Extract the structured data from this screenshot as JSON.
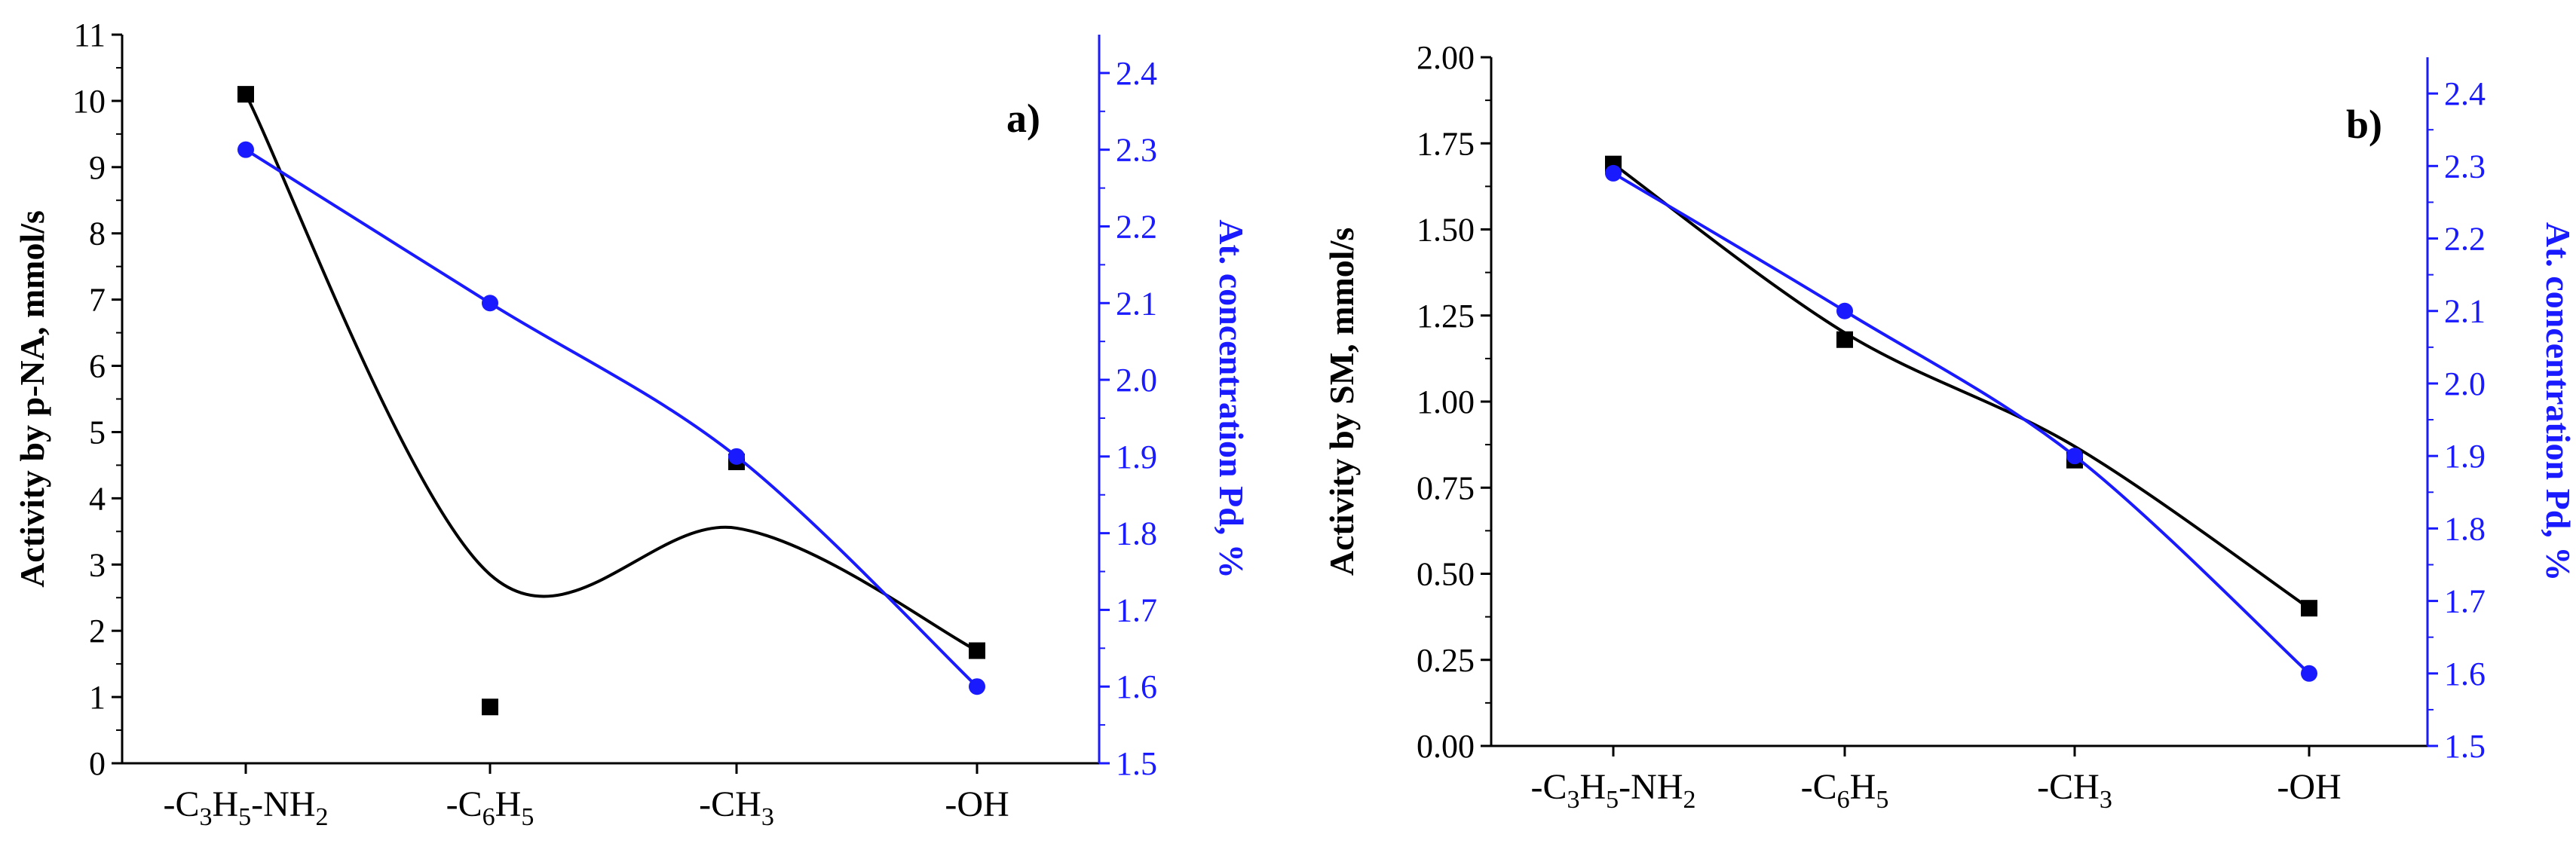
{
  "chart_data": [
    {
      "type": "line",
      "panel_label": "a)",
      "categories": [
        "-C3H5-NH2",
        "-C6H5",
        "-CH3",
        "-OH"
      ],
      "category_labels": [
        [
          {
            "t": "-C"
          },
          {
            "t": "3",
            "sub": true
          },
          {
            "t": "H"
          },
          {
            "t": "5",
            "sub": true
          },
          {
            "t": "-NH"
          },
          {
            "t": "2",
            "sub": true
          }
        ],
        [
          {
            "t": "-C"
          },
          {
            "t": "6",
            "sub": true
          },
          {
            "t": "H"
          },
          {
            "t": "5",
            "sub": true
          }
        ],
        [
          {
            "t": "-CH"
          },
          {
            "t": "3",
            "sub": true
          }
        ],
        [
          {
            "t": "-OH"
          }
        ]
      ],
      "ylabel": "Activity by p-NA, mmol/s",
      "y2label": "At. concentration Pd, %",
      "ylim": [
        0,
        11
      ],
      "yticks": [
        "0",
        "1",
        "2",
        "3",
        "4",
        "5",
        "6",
        "7",
        "8",
        "9",
        "10",
        "11"
      ],
      "y2lim": [
        1.5,
        2.45
      ],
      "y2ticks": [
        "1.5",
        "1.6",
        "1.7",
        "1.8",
        "1.9",
        "2.0",
        "2.1",
        "2.2",
        "2.3",
        "2.4"
      ],
      "series": [
        {
          "name": "Activity",
          "axis": "left",
          "color": "#000000",
          "marker": "square",
          "values": [
            10.1,
            0.85,
            4.55,
            1.7
          ],
          "curve": [
            10.1,
            2.85,
            3.55,
            1.7
          ]
        },
        {
          "name": "Pd concentration",
          "axis": "right",
          "color": "#1a1aff",
          "marker": "circle",
          "values": [
            2.3,
            2.1,
            1.9,
            1.6
          ],
          "curve": [
            2.3,
            2.1,
            1.9,
            1.6
          ]
        }
      ]
    },
    {
      "type": "line",
      "panel_label": "b)",
      "categories": [
        "-C3H5-NH2",
        "-C6H5",
        "-CH3",
        "-OH"
      ],
      "category_labels": [
        [
          {
            "t": "-C"
          },
          {
            "t": "3",
            "sub": true
          },
          {
            "t": "H"
          },
          {
            "t": "5",
            "sub": true
          },
          {
            "t": "-NH"
          },
          {
            "t": "2",
            "sub": true
          }
        ],
        [
          {
            "t": "-C"
          },
          {
            "t": "6",
            "sub": true
          },
          {
            "t": "H"
          },
          {
            "t": "5",
            "sub": true
          }
        ],
        [
          {
            "t": "-CH"
          },
          {
            "t": "3",
            "sub": true
          }
        ],
        [
          {
            "t": "-OH"
          }
        ]
      ],
      "ylabel": "Activity by SM, mmol/s",
      "y2label": "At. concentration Pd, %",
      "ylim": [
        0,
        2.0
      ],
      "yticks": [
        "0.00",
        "0.25",
        "0.50",
        "0.75",
        "1.00",
        "1.25",
        "1.50",
        "1.75",
        "2.00"
      ],
      "y2lim": [
        1.5,
        2.45
      ],
      "y2ticks": [
        "1.5",
        "1.6",
        "1.7",
        "1.8",
        "1.9",
        "2.0",
        "2.1",
        "2.2",
        "2.3",
        "2.4"
      ],
      "series": [
        {
          "name": "Activity",
          "axis": "left",
          "color": "#000000",
          "marker": "square",
          "values": [
            1.69,
            1.18,
            0.83,
            0.4
          ],
          "curve": [
            1.69,
            1.2,
            0.87,
            0.4
          ]
        },
        {
          "name": "Pd concentration",
          "axis": "right",
          "color": "#1a1aff",
          "marker": "circle",
          "values": [
            2.29,
            2.1,
            1.9,
            1.6
          ],
          "curve": [
            2.29,
            2.1,
            1.9,
            1.6
          ]
        }
      ]
    }
  ]
}
